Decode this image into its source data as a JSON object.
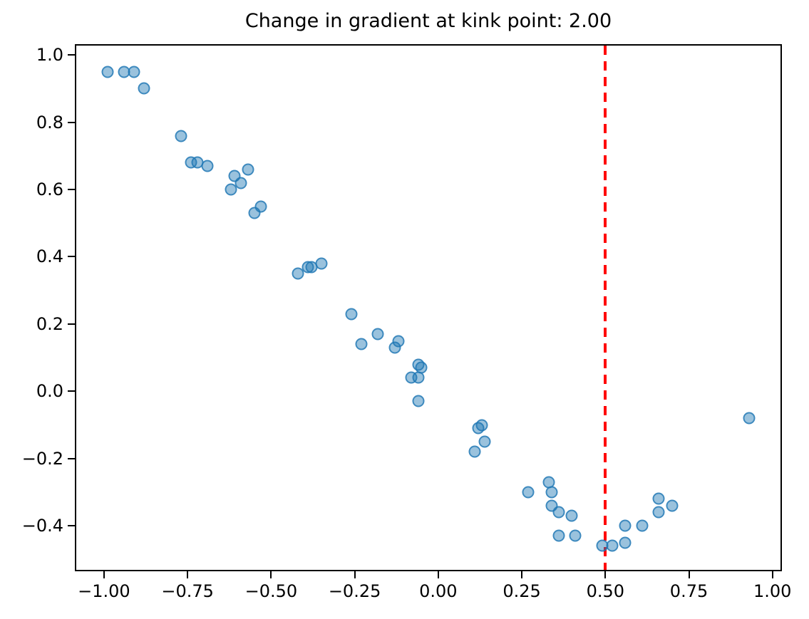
{
  "chart_data": {
    "type": "scatter",
    "title": "Change in gradient at kink point: 2.00",
    "xlabel": "",
    "ylabel": "",
    "xlim": [
      -1.083,
      1.024
    ],
    "ylim": [
      -0.531,
      1.028
    ],
    "grid": false,
    "legend": null,
    "x_ticks": [
      {
        "value": -1.0,
        "label": "−1.00"
      },
      {
        "value": -0.75,
        "label": "−0.75"
      },
      {
        "value": -0.5,
        "label": "−0.50"
      },
      {
        "value": -0.25,
        "label": "−0.25"
      },
      {
        "value": 0.0,
        "label": "0.00"
      },
      {
        "value": 0.25,
        "label": "0.25"
      },
      {
        "value": 0.5,
        "label": "0.50"
      },
      {
        "value": 0.75,
        "label": "0.75"
      },
      {
        "value": 1.0,
        "label": "1.00"
      }
    ],
    "y_ticks": [
      {
        "value": 1.0,
        "label": "1.0"
      },
      {
        "value": 0.8,
        "label": "0.8"
      },
      {
        "value": 0.6,
        "label": "0.6"
      },
      {
        "value": 0.4,
        "label": "0.4"
      },
      {
        "value": 0.2,
        "label": "0.2"
      },
      {
        "value": 0.0,
        "label": "0.0"
      },
      {
        "value": -0.2,
        "label": "−0.2"
      },
      {
        "value": -0.4,
        "label": "−0.4"
      }
    ],
    "vline": {
      "x": 0.5,
      "color": "#ff0000",
      "style": "dashed"
    },
    "marker": {
      "shape": "circle",
      "color": "#1f77b4",
      "fill_alpha": 0.45,
      "edge_alpha": 0.75,
      "radius_px": 8.5
    },
    "points": [
      [
        -0.99,
        0.95
      ],
      [
        -0.94,
        0.95
      ],
      [
        -0.91,
        0.95
      ],
      [
        -0.88,
        0.9
      ],
      [
        -0.77,
        0.76
      ],
      [
        -0.74,
        0.68
      ],
      [
        -0.72,
        0.68
      ],
      [
        -0.69,
        0.67
      ],
      [
        -0.61,
        0.64
      ],
      [
        -0.59,
        0.62
      ],
      [
        -0.62,
        0.6
      ],
      [
        -0.57,
        0.66
      ],
      [
        -0.53,
        0.55
      ],
      [
        -0.55,
        0.53
      ],
      [
        -0.42,
        0.35
      ],
      [
        -0.39,
        0.37
      ],
      [
        -0.38,
        0.37
      ],
      [
        -0.35,
        0.38
      ],
      [
        -0.26,
        0.23
      ],
      [
        -0.23,
        0.14
      ],
      [
        -0.18,
        0.17
      ],
      [
        -0.12,
        0.15
      ],
      [
        -0.13,
        0.13
      ],
      [
        -0.06,
        0.08
      ],
      [
        -0.05,
        0.07
      ],
      [
        -0.08,
        0.04
      ],
      [
        -0.06,
        0.04
      ],
      [
        -0.06,
        -0.03
      ],
      [
        0.12,
        -0.11
      ],
      [
        0.13,
        -0.1
      ],
      [
        0.14,
        -0.15
      ],
      [
        0.11,
        -0.18
      ],
      [
        0.27,
        -0.3
      ],
      [
        0.33,
        -0.27
      ],
      [
        0.34,
        -0.3
      ],
      [
        0.34,
        -0.34
      ],
      [
        0.36,
        -0.36
      ],
      [
        0.4,
        -0.37
      ],
      [
        0.36,
        -0.43
      ],
      [
        0.41,
        -0.43
      ],
      [
        0.49,
        -0.46
      ],
      [
        0.52,
        -0.46
      ],
      [
        0.56,
        -0.45
      ],
      [
        0.56,
        -0.4
      ],
      [
        0.61,
        -0.4
      ],
      [
        0.66,
        -0.32
      ],
      [
        0.66,
        -0.36
      ],
      [
        0.7,
        -0.34
      ],
      [
        0.93,
        -0.08
      ]
    ]
  }
}
